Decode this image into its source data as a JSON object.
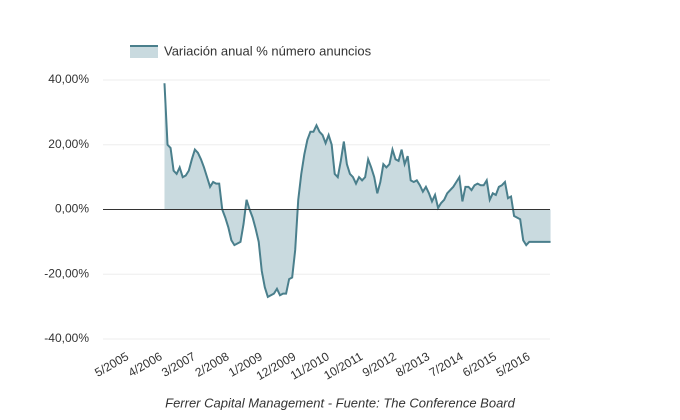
{
  "chart_data": {
    "type": "area",
    "legend": "top-left",
    "caption": "Ferrer Capital Management - Fuente: The Conference Board",
    "categories": [
      "5/2005",
      null,
      null,
      null,
      null,
      null,
      null,
      null,
      null,
      null,
      null,
      "4/2006",
      null,
      null,
      null,
      null,
      null,
      null,
      null,
      null,
      null,
      null,
      "3/2007",
      null,
      null,
      null,
      null,
      null,
      null,
      null,
      null,
      null,
      null,
      "2/2008",
      null,
      null,
      null,
      null,
      null,
      null,
      null,
      null,
      null,
      null,
      "1/2009",
      null,
      null,
      null,
      null,
      null,
      null,
      null,
      null,
      null,
      null,
      "12/2009",
      null,
      null,
      null,
      null,
      null,
      null,
      null,
      null,
      null,
      null,
      "11/2010",
      null,
      null,
      null,
      null,
      null,
      null,
      null,
      null,
      null,
      null,
      "10/2011",
      null,
      null,
      null,
      null,
      null,
      null,
      null,
      null,
      null,
      null,
      "9/2012",
      null,
      null,
      null,
      null,
      null,
      null,
      null,
      null,
      null,
      null,
      "8/2013",
      null,
      null,
      null,
      null,
      null,
      null,
      null,
      null,
      null,
      null,
      "7/2014",
      null,
      null,
      null,
      null,
      null,
      null,
      null,
      null,
      null,
      null,
      "6/2015",
      null,
      null,
      null,
      null,
      null,
      null,
      null,
      null,
      null,
      null,
      "5/2016",
      null,
      null,
      null,
      null,
      null,
      null,
      null
    ],
    "series": [
      {
        "name": "Variación anual % número anuncios",
        "color": "#4a7f8c",
        "fill": "#c9dadf",
        "values": [
          null,
          null,
          null,
          null,
          null,
          null,
          null,
          null,
          null,
          null,
          null,
          null,
          39,
          20,
          19,
          12,
          11,
          13,
          10,
          10.5,
          12,
          15.5,
          18.5,
          17.5,
          15.5,
          13,
          10,
          7,
          8.5,
          8,
          8,
          0,
          -2.5,
          -5.5,
          -9.5,
          -11,
          -10.5,
          -10,
          -4.5,
          3,
          0,
          -2.5,
          -6,
          -10,
          -19,
          -24,
          -27,
          -26.5,
          -26,
          -24.5,
          -26.5,
          -26,
          -26,
          -21.5,
          -21,
          -12.5,
          3,
          11,
          17,
          21.5,
          24,
          24,
          26,
          24,
          23,
          20.5,
          23,
          20,
          11,
          10,
          15,
          21,
          14,
          11,
          10,
          8,
          10,
          9,
          10,
          15.5,
          13,
          10,
          5,
          8.5,
          14,
          13,
          14,
          18.5,
          15.5,
          15,
          18.5,
          14,
          16.5,
          9,
          8.5,
          9,
          7.5,
          5.5,
          7,
          5,
          2.5,
          4.5,
          0.5,
          2,
          3,
          5,
          6,
          7,
          8.5,
          10,
          2.5,
          7,
          7,
          6,
          7.5,
          8,
          7.5,
          7.5,
          9,
          3,
          5,
          4.5,
          7,
          7.5,
          8.5,
          3.5,
          4,
          -2,
          -2.5,
          -3,
          -9.5,
          -11,
          -10,
          -10,
          -10,
          -10,
          -10,
          -10,
          -10,
          -10
        ]
      }
    ],
    "ylim": [
      -40,
      40
    ],
    "yticks": [
      {
        "value": -40,
        "label": "-40,00%"
      },
      {
        "value": -20,
        "label": "-20,00%"
      },
      {
        "value": 0,
        "label": "0,00%"
      },
      {
        "value": 20,
        "label": "20,00%"
      },
      {
        "value": 40,
        "label": "40,00%"
      }
    ],
    "grid": true
  }
}
